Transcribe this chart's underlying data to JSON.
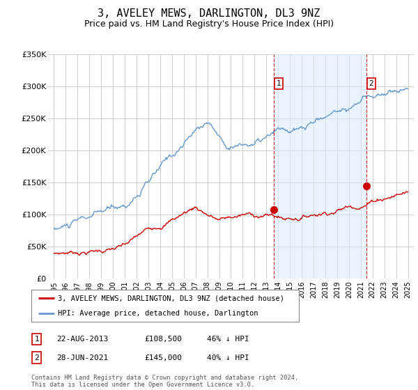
{
  "title": "3, AVELEY MEWS, DARLINGTON, DL3 9NZ",
  "subtitle": "Price paid vs. HM Land Registry's House Price Index (HPI)",
  "title_fontsize": 11,
  "subtitle_fontsize": 9,
  "background_color": "#ffffff",
  "grid_color": "#cccccc",
  "line1_color": "#cc0000",
  "line2_color": "#6699cc",
  "shade_color": "#ddeeff",
  "marker1_date": 2013.64,
  "marker2_date": 2021.49,
  "marker1_price": 108500,
  "marker2_price": 145000,
  "ylim": [
    0,
    350000
  ],
  "xlim": [
    1994.5,
    2025.5
  ],
  "legend_label1": "3, AVELEY MEWS, DARLINGTON, DL3 9NZ (detached house)",
  "legend_label2": "HPI: Average price, detached house, Darlington",
  "table_row1": [
    "1",
    "22-AUG-2013",
    "£108,500",
    "46% ↓ HPI"
  ],
  "table_row2": [
    "2",
    "28-JUN-2021",
    "£145,000",
    "40% ↓ HPI"
  ],
  "footer": "Contains HM Land Registry data © Crown copyright and database right 2024.\nThis data is licensed under the Open Government Licence v3.0.",
  "yticks": [
    0,
    50000,
    100000,
    150000,
    200000,
    250000,
    300000,
    350000
  ],
  "ytick_labels": [
    "£0",
    "£50K",
    "£100K",
    "£150K",
    "£200K",
    "£250K",
    "£300K",
    "£350K"
  ]
}
